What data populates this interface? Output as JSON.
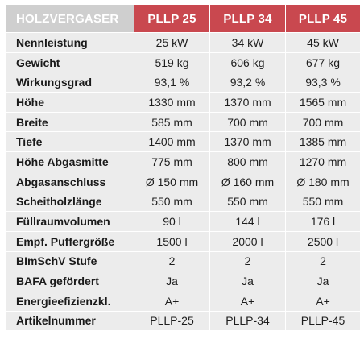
{
  "colors": {
    "header_label_bg": "#cfcfcf",
    "header_model_bg": "#c9484f",
    "row_bg": "#ececec",
    "text": "#1e1e1e"
  },
  "table": {
    "label_header": "HOLZVERGASER",
    "models": [
      "PLLP 25",
      "PLLP 34",
      "PLLP 45"
    ],
    "rows": [
      {
        "label": "Nennleistung",
        "values": [
          "25 kW",
          "34 kW",
          "45 kW"
        ]
      },
      {
        "label": "Gewicht",
        "values": [
          "519 kg",
          "606 kg",
          "677 kg"
        ]
      },
      {
        "label": "Wirkungsgrad",
        "values": [
          "93,1 %",
          "93,2 %",
          "93,3 %"
        ]
      },
      {
        "label": "Höhe",
        "values": [
          "1330 mm",
          "1370 mm",
          "1565 mm"
        ]
      },
      {
        "label": "Breite",
        "values": [
          "585 mm",
          "700 mm",
          "700 mm"
        ]
      },
      {
        "label": "Tiefe",
        "values": [
          "1400 mm",
          "1370 mm",
          "1385 mm"
        ]
      },
      {
        "label": "Höhe Abgasmitte",
        "values": [
          "775 mm",
          "800 mm",
          "1270 mm"
        ]
      },
      {
        "label": "Abgasanschluss",
        "values": [
          "Ø 150 mm",
          "Ø 160 mm",
          "Ø 180 mm"
        ]
      },
      {
        "label": "Scheitholzlänge",
        "values": [
          "550 mm",
          "550 mm",
          "550 mm"
        ]
      },
      {
        "label": "Füllraumvolumen",
        "values": [
          "90 l",
          "144 l",
          "176 l"
        ]
      },
      {
        "label": "Empf. Puffergröße",
        "values": [
          "1500 l",
          "2000 l",
          "2500 l"
        ]
      },
      {
        "label": "BImSchV Stufe",
        "values": [
          "2",
          "2",
          "2"
        ]
      },
      {
        "label": "BAFA gefördert",
        "values": [
          "Ja",
          "Ja",
          "Ja"
        ]
      },
      {
        "label": "Energieefizienzkl.",
        "values": [
          "A+",
          "A+",
          "A+"
        ]
      },
      {
        "label": "Artikelnummer",
        "values": [
          "PLLP-25",
          "PLLP-34",
          "PLLP-45"
        ]
      }
    ]
  }
}
